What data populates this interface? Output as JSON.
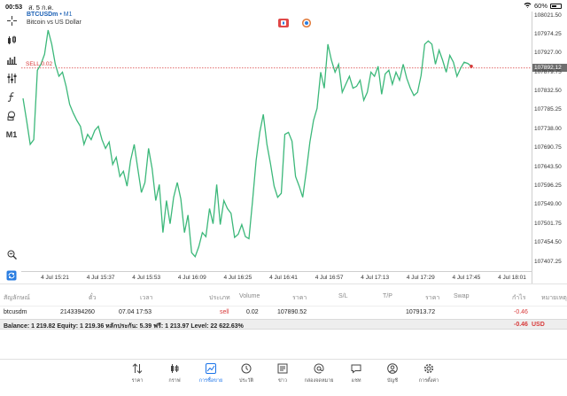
{
  "status_bar": {
    "time": "00:53",
    "date": "ส. 5 ก.ค.",
    "battery": "60%",
    "battery_level": 0.6
  },
  "chart": {
    "symbol": "BTCUSDm",
    "timeframe_suffix": "• M1",
    "description": "Bitcoin vs US Dollar",
    "sell_label": "SELL 0.02",
    "current_price": "107892.12",
    "price_ticks": [
      "108021.50",
      "107974.25",
      "107927.00",
      "107879.75",
      "107832.50",
      "107785.25",
      "107738.00",
      "107690.75",
      "107643.50",
      "107596.25",
      "107549.00",
      "107501.75",
      "107454.50",
      "107407.25"
    ],
    "time_ticks": [
      "4 Jul 15:21",
      "4 Jul 15:37",
      "4 Jul 15:53",
      "4 Jul 16:09",
      "4 Jul 16:25",
      "4 Jul 16:41",
      "4 Jul 16:57",
      "4 Jul 17:13",
      "4 Jul 17:29",
      "4 Jul 17:45",
      "4 Jul 18:01"
    ],
    "line_color": "#3cb87a",
    "sell_line_color": "#d83a3a"
  },
  "chart_data": {
    "type": "line",
    "ylim": [
      107407.25,
      108021.5
    ],
    "sell_level": 107890.52,
    "series": [
      {
        "values": [
          107815,
          107760,
          107700,
          107712,
          107885,
          107900,
          107925,
          107985,
          107950,
          107900,
          107870,
          107880,
          107845,
          107800,
          107778,
          107760,
          107745,
          107700,
          107725,
          107712,
          107735,
          107745,
          107712,
          107690,
          107706,
          107650,
          107668,
          107620,
          107633,
          107596,
          107660,
          107700,
          107640,
          107580,
          107605,
          107690,
          107640,
          107560,
          107600,
          107480,
          107560,
          107502,
          107568,
          107605,
          107564,
          107480,
          107524,
          107430,
          107420,
          107445,
          107480,
          107470,
          107540,
          107502,
          107600,
          107500,
          107560,
          107540,
          107528,
          107468,
          107476,
          107500,
          107470,
          107465,
          107560,
          107660,
          107730,
          107775,
          107700,
          107652,
          107596,
          107568,
          107578,
          107725,
          107730,
          107708,
          107620,
          107596,
          107568,
          107634,
          107706,
          107760,
          107790,
          107880,
          107840,
          107950,
          107910,
          107880,
          107900,
          107830,
          107850,
          107870,
          107840,
          107845,
          107860,
          107810,
          107830,
          107880,
          107870,
          107895,
          107825,
          107876,
          107885,
          107850,
          107880,
          107860,
          107900,
          107865,
          107840,
          107822,
          107830,
          107872,
          107950,
          107958,
          107950,
          107900,
          107935,
          107910,
          107880,
          107922,
          107905,
          107870,
          107890,
          107905,
          107902,
          107895
        ]
      }
    ]
  },
  "table": {
    "headers": [
      "สัญลักษณ์",
      "ตั๋ว",
      "เวลา",
      "ประเภท",
      "Volume",
      "ราคา",
      "S/L",
      "T/P",
      "ราคา",
      "Swap",
      "กำไร",
      "หมายเหตุ"
    ],
    "row": {
      "symbol": "btcusdm",
      "ticket": "2143394260",
      "time": "07.04 17:53",
      "type": "sell",
      "volume": "0.02",
      "price_open": "107890.52",
      "price_current": "107913.72",
      "profit": "-0.46"
    },
    "balance_text": "Balance: 1 219.82 Equity: 1 219.36 หลักประกัน: 5.39 ฟรี: 1 213.97 Level: 22 622.63%",
    "total_profit": "-0.46",
    "currency": "USD"
  },
  "tabs": [
    {
      "label": "ราคา",
      "icon": "arrows-updown-icon"
    },
    {
      "label": "กราฟ",
      "icon": "candles-icon"
    },
    {
      "label": "การซื้อขาย",
      "icon": "trade-chart-icon",
      "active": true
    },
    {
      "label": "ประวัติ",
      "icon": "history-clock-icon"
    },
    {
      "label": "ข่าว",
      "icon": "news-icon"
    },
    {
      "label": "กล่องจดหมาย",
      "icon": "mail-at-icon"
    },
    {
      "label": "แชท",
      "icon": "chat-icon"
    },
    {
      "label": "บัญชี",
      "icon": "account-icon"
    },
    {
      "label": "การตั้งค่า",
      "icon": "settings-gear-icon"
    }
  ]
}
